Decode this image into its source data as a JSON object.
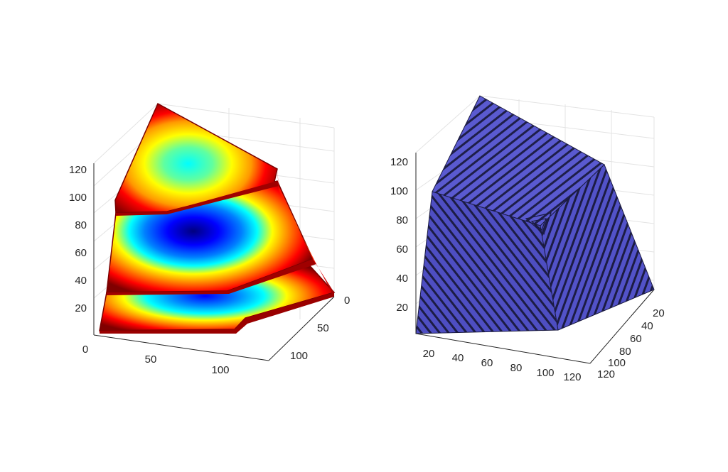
{
  "chart_data": [
    {
      "type": "3d-slice",
      "colormap": "jet",
      "colormap_colors": [
        "#00008f",
        "#0000ff",
        "#00ffff",
        "#ffff00",
        "#ff0000",
        "#800000"
      ],
      "grid": true,
      "slices_along_z": 3,
      "x_ticks": [
        "0",
        "50",
        "100"
      ],
      "y_ticks": [
        "0",
        "50",
        "100"
      ],
      "z_ticks": [
        "20",
        "40",
        "60",
        "80",
        "100",
        "120"
      ]
    },
    {
      "type": "3d-isosurface",
      "face_color": "#5555cc",
      "edge_color": "#1a1a40",
      "grid": true,
      "x_ticks": [
        "20",
        "40",
        "60",
        "80",
        "100",
        "120"
      ],
      "y_ticks": [
        "20",
        "40",
        "60",
        "80",
        "100",
        "120"
      ],
      "z_ticks": [
        "20",
        "40",
        "60",
        "80",
        "100",
        "120"
      ]
    }
  ]
}
